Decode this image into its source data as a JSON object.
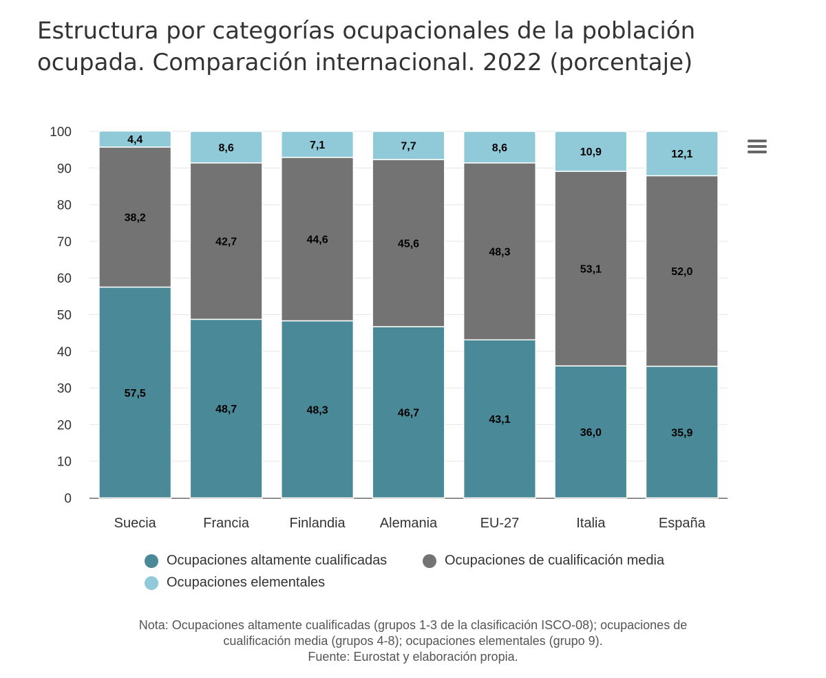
{
  "title": "Estructura por categorías ocupacionales de la población ocupada. Comparación internacional. 2022 (porcentaje)",
  "menu_icon": "hamburger-menu-icon",
  "chart_data": {
    "type": "bar",
    "stacked": true,
    "categories": [
      "Suecia",
      "Francia",
      "Finlandia",
      "Alemania",
      "EU-27",
      "Italia",
      "España"
    ],
    "series": [
      {
        "name": "Ocupaciones altamente cualificadas",
        "color": "#4a8a98",
        "values": [
          57.5,
          48.7,
          48.3,
          46.7,
          43.1,
          36.0,
          35.9
        ],
        "labels": [
          "57,5",
          "48,7",
          "48,3",
          "46,7",
          "43,1",
          "36,0",
          "35,9"
        ]
      },
      {
        "name": "Ocupaciones de cualificación media",
        "color": "#737373",
        "values": [
          38.2,
          42.7,
          44.6,
          45.6,
          48.3,
          53.1,
          52.0
        ],
        "labels": [
          "38,2",
          "42,7",
          "44,6",
          "45,6",
          "48,3",
          "53,1",
          "52,0"
        ]
      },
      {
        "name": "Ocupaciones elementales",
        "color": "#90cad9",
        "values": [
          4.4,
          8.6,
          7.1,
          7.7,
          8.6,
          10.9,
          12.1
        ],
        "labels": [
          "4,4",
          "8,6",
          "7,1",
          "7,7",
          "8,6",
          "10,9",
          "12,1"
        ]
      }
    ],
    "ylim": [
      0,
      100
    ],
    "yticks": [
      "0",
      "10",
      "20",
      "30",
      "40",
      "50",
      "60",
      "70",
      "80",
      "90",
      "100"
    ],
    "grid": true,
    "legend_position": "bottom"
  },
  "note": {
    "line1": "Nota: Ocupaciones altamente cualificadas (grupos 1-3 de la clasificación ISCO-08); ocupaciones de",
    "line2": "cualificación media (grupos 4-8); ocupaciones elementales (grupo 9).",
    "line3": "Fuente: Eurostat y elaboración propia."
  }
}
